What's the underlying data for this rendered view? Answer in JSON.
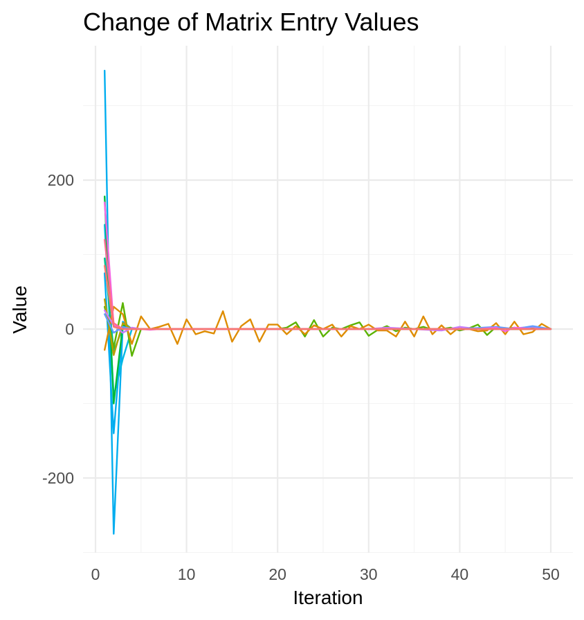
{
  "chart_data": {
    "type": "line",
    "title": "Change of Matrix Entry Values",
    "xlabel": "Iteration",
    "ylabel": "Value",
    "xlim": [
      0,
      50
    ],
    "ylim": [
      -300,
      345
    ],
    "x_ticks": [
      0,
      10,
      20,
      30,
      40,
      50
    ],
    "x_tick_labels": [
      "0",
      "10",
      "20",
      "30",
      "40",
      "50"
    ],
    "y_ticks": [
      -200,
      0,
      200
    ],
    "y_tick_labels": [
      "-200",
      "0",
      "200"
    ],
    "grid": true,
    "legend": "none",
    "series": [
      {
        "color": "#00ADEF",
        "x": [
          1,
          2,
          3,
          4,
          5,
          6,
          7,
          8,
          9,
          10,
          12,
          14,
          16,
          18,
          20,
          22,
          24,
          26,
          28,
          30,
          32,
          34,
          36,
          38,
          40,
          42,
          44,
          46,
          48,
          50
        ],
        "y": [
          347,
          -275,
          5,
          1,
          0,
          0,
          0,
          0,
          0,
          0,
          0,
          0,
          0,
          0,
          0,
          0,
          0,
          0,
          0,
          0,
          0,
          0,
          0,
          0,
          0,
          0,
          0,
          0,
          0,
          0
        ]
      },
      {
        "color": "#00ADEF",
        "x": [
          1,
          2,
          3,
          4,
          5,
          10,
          20,
          30,
          40,
          50
        ],
        "y": [
          75,
          -140,
          10,
          0,
          0,
          0,
          0,
          0,
          0,
          0
        ]
      },
      {
        "color": "#00B8E5",
        "x": [
          1,
          2,
          3,
          4,
          5,
          10,
          20,
          30,
          40,
          50
        ],
        "y": [
          140,
          -90,
          -40,
          0,
          0,
          0,
          0,
          0,
          0,
          0
        ]
      },
      {
        "color": "#00BA38",
        "x": [
          1,
          2,
          3,
          4,
          5,
          10,
          20,
          30,
          40,
          50
        ],
        "y": [
          178,
          -100,
          5,
          0,
          0,
          0,
          0,
          0,
          0,
          0
        ]
      },
      {
        "color": "#00C08B",
        "x": [
          1,
          2,
          3,
          4,
          5,
          10,
          20,
          30,
          40,
          50
        ],
        "y": [
          95,
          -30,
          2,
          0,
          0,
          0,
          0,
          0,
          0,
          0
        ]
      },
      {
        "color": "#5BB300",
        "x": [
          1,
          2,
          3,
          4,
          5,
          6,
          7,
          8,
          9,
          10,
          11,
          12,
          13,
          14,
          15,
          16,
          17,
          18,
          19,
          20,
          21,
          22,
          23,
          24,
          25,
          26,
          27,
          28,
          29,
          30,
          31,
          32,
          33,
          34,
          35,
          36,
          37,
          38,
          39,
          40,
          41,
          42,
          43,
          44,
          45,
          46,
          47,
          48,
          49,
          50
        ],
        "y": [
          30,
          -25,
          35,
          -36,
          0,
          0,
          0,
          0,
          0,
          0,
          0,
          0,
          0,
          0,
          0,
          0,
          0,
          0,
          0,
          0,
          2,
          9,
          -10,
          12,
          -10,
          2,
          0,
          5,
          9,
          -9,
          -1,
          4,
          -3,
          2,
          0,
          3,
          -1,
          0,
          2,
          -2,
          1,
          6,
          -8,
          3,
          0,
          2,
          0,
          1,
          0,
          0
        ]
      },
      {
        "color": "#DE8C00",
        "x": [
          1,
          2,
          3,
          4,
          5,
          6,
          7,
          8,
          9,
          10,
          11,
          12,
          13,
          14,
          15,
          16,
          17,
          18,
          19,
          20,
          21,
          22,
          23,
          24,
          25,
          26,
          27,
          28,
          29,
          30,
          31,
          32,
          33,
          34,
          35,
          36,
          37,
          38,
          39,
          40,
          41,
          42,
          43,
          44,
          45,
          46,
          47,
          48,
          49,
          50
        ],
        "y": [
          -28,
          30,
          20,
          -20,
          17,
          0,
          3,
          7,
          -20,
          13,
          -7,
          -3,
          -6,
          24,
          -17,
          4,
          13,
          -17,
          6,
          6,
          -7,
          4,
          -7,
          5,
          0,
          6,
          -10,
          4,
          0,
          6,
          -2,
          -2,
          -10,
          10,
          -10,
          17,
          -7,
          5,
          -7,
          3,
          0,
          -3,
          -2,
          8,
          -7,
          10,
          -7,
          -4,
          7,
          0
        ]
      },
      {
        "color": "#B79F00",
        "x": [
          1,
          2,
          3,
          4,
          5,
          10,
          20,
          30,
          40,
          50
        ],
        "y": [
          40,
          -35,
          8,
          0,
          0,
          0,
          0,
          0,
          0,
          0
        ]
      },
      {
        "color": "#C77CFF",
        "x": [
          1,
          2,
          3,
          4,
          5,
          6,
          8,
          10,
          15,
          20,
          25,
          30,
          32,
          35,
          38,
          40,
          42,
          45,
          48,
          50
        ],
        "y": [
          25,
          5,
          -5,
          2,
          0,
          0,
          0,
          0,
          0,
          0,
          0,
          0,
          2,
          0,
          -2,
          3,
          0,
          0,
          3,
          0
        ]
      },
      {
        "color": "#619CFF",
        "x": [
          1,
          2,
          3,
          4,
          5,
          10,
          20,
          30,
          40,
          44,
          46,
          48,
          50
        ],
        "y": [
          20,
          -5,
          3,
          0,
          0,
          0,
          0,
          0,
          0,
          3,
          0,
          4,
          0
        ]
      },
      {
        "color": "#F564E3",
        "x": [
          1,
          2,
          3,
          4,
          5,
          6,
          7,
          8,
          9,
          10,
          12,
          14,
          16,
          18,
          20,
          22,
          24,
          26,
          28,
          30,
          32,
          34,
          36,
          38,
          40,
          42,
          44,
          45,
          46,
          48,
          50
        ],
        "y": [
          170,
          5,
          0,
          0,
          0,
          -1,
          0,
          0,
          0,
          0,
          0,
          0,
          0,
          0,
          0,
          0,
          0,
          0,
          0,
          0,
          0,
          0,
          0,
          0,
          0,
          0,
          2,
          -3,
          2,
          0,
          0
        ]
      },
      {
        "color": "#FF6C91",
        "x": [
          1,
          2,
          3,
          4,
          5,
          10,
          20,
          30,
          40,
          50
        ],
        "y": [
          120,
          8,
          0,
          0,
          0,
          0,
          0,
          0,
          0,
          0
        ]
      },
      {
        "color": "#F8766D",
        "x": [
          1,
          2,
          3,
          4,
          5,
          10,
          20,
          30,
          40,
          50
        ],
        "y": [
          85,
          3,
          0,
          0,
          0,
          0,
          0,
          0,
          0,
          0
        ]
      }
    ]
  }
}
